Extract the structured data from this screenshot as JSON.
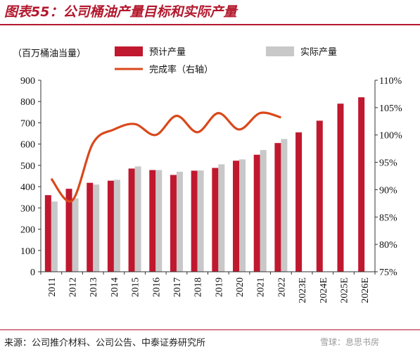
{
  "header": {
    "title": "图表55：公司桶油产量目标和实际产量"
  },
  "footer": {
    "source": "来源：公司推介材料、公司公告、中泰证券研究所",
    "watermark": "雪球：息思书房"
  },
  "chart_data": {
    "type": "bar",
    "categories": [
      "2011",
      "2012",
      "2013",
      "2014",
      "2015",
      "2016",
      "2017",
      "2018",
      "2019",
      "2020",
      "2021",
      "2022",
      "2023E",
      "2024E",
      "2025E",
      "2026E"
    ],
    "unit_label": "（百万桶油当量）",
    "series": [
      {
        "name": "预计产量",
        "kind": "bar",
        "color": "#c0182f",
        "values": [
          360,
          390,
          418,
          428,
          485,
          478,
          455,
          475,
          488,
          522,
          550,
          605,
          655,
          710,
          790,
          820
        ]
      },
      {
        "name": "实际产量",
        "kind": "bar",
        "color": "#c8c8c8",
        "values": [
          330,
          345,
          410,
          432,
          495,
          478,
          470,
          476,
          505,
          528,
          572,
          624,
          null,
          null,
          null,
          null
        ]
      },
      {
        "name": "完成率（右轴）",
        "kind": "line",
        "axis": "right",
        "color": "#d9481b",
        "values": [
          92.0,
          88.0,
          98.5,
          101.0,
          102.0,
          100.0,
          103.5,
          100.5,
          104.0,
          101.0,
          104.0,
          103.2,
          null,
          null,
          null,
          null
        ]
      }
    ],
    "y_left": {
      "min": 0,
      "max": 900,
      "ticks": [
        0,
        100,
        200,
        300,
        400,
        500,
        600,
        700,
        800,
        900
      ]
    },
    "y_right": {
      "min": 75,
      "max": 110,
      "ticks": [
        "75%",
        "80%",
        "85%",
        "90%",
        "95%",
        "100%",
        "105%",
        "110%"
      ]
    },
    "legend": {
      "placement": "top"
    }
  }
}
